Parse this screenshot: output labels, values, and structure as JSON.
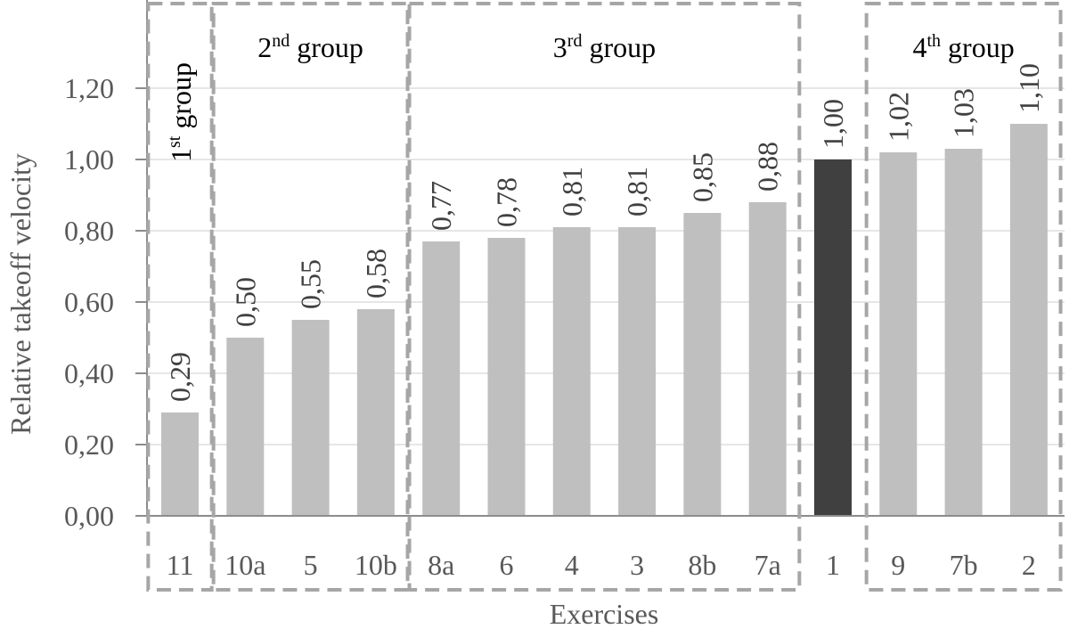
{
  "chart_data": {
    "type": "bar",
    "title": "",
    "xlabel": "Exercises",
    "ylabel": "Relative takeoff velocity",
    "ylim": [
      0,
      1.35
    ],
    "yticks": [
      "0,00",
      "0,20",
      "0,40",
      "0,60",
      "0,80",
      "1,00",
      "1,20"
    ],
    "yticks_values": [
      0,
      0.2,
      0.4,
      0.6,
      0.8,
      1.0,
      1.2
    ],
    "grid": true,
    "categories": [
      "11",
      "10a",
      "5",
      "10b",
      "8a",
      "6",
      "4",
      "3",
      "8b",
      "7a",
      "1",
      "9",
      "7b",
      "2"
    ],
    "values": [
      0.29,
      0.5,
      0.55,
      0.58,
      0.77,
      0.78,
      0.81,
      0.81,
      0.85,
      0.88,
      1.0,
      1.02,
      1.03,
      1.1
    ],
    "value_labels": [
      "0,29",
      "0,50",
      "0,55",
      "0,58",
      "0,77",
      "0,78",
      "0,81",
      "0,81",
      "0,85",
      "0,88",
      "1,00",
      "1,02",
      "1,03",
      "1,10"
    ],
    "highlight_index": 10,
    "colors": {
      "bar": "#bfbfbf",
      "highlight": "#404040",
      "group_box": "#a6a6a6",
      "grid": "#e6e6e6",
      "axis_text": "#595959"
    },
    "groups": [
      {
        "base": "1",
        "sup": "st",
        "rest": " group",
        "start": 0,
        "end": 0
      },
      {
        "base": "2",
        "sup": "nd",
        "rest": " group",
        "start": 1,
        "end": 3
      },
      {
        "base": "3",
        "sup": "rd",
        "rest": " group",
        "start": 4,
        "end": 9
      },
      {
        "base": "4",
        "sup": "th",
        "rest": " group",
        "start": 11,
        "end": 13
      }
    ]
  }
}
